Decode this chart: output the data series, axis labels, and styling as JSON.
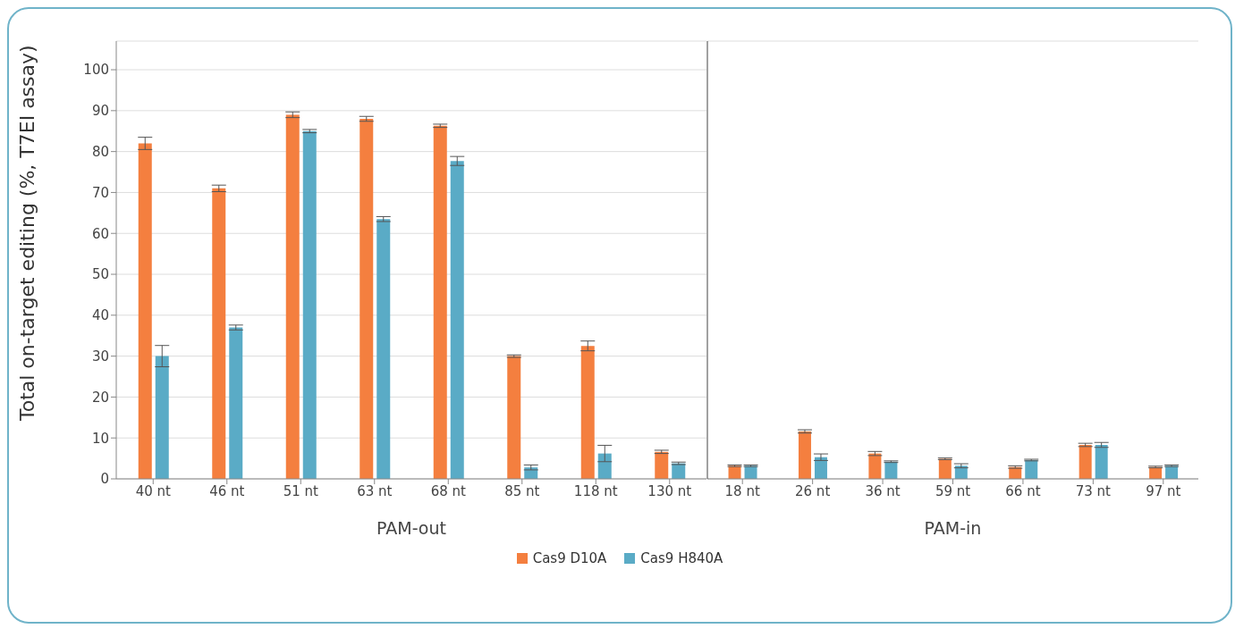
{
  "chart_data": [
    {
      "type": "bar",
      "ylabel": "Total on-target editing (%, T7EI assay)",
      "xlabel": "PAM-out",
      "categories": [
        "40 nt",
        "46 nt",
        "51 nt",
        "63 nt",
        "68 nt",
        "85 nt",
        "118 nt",
        "130 nt"
      ],
      "series": [
        {
          "name": "Cas9 D10A",
          "color": "#f47f3f",
          "values": [
            82,
            71,
            89,
            88,
            86.3,
            30,
            32.5,
            6.6
          ],
          "errors": [
            1.5,
            0.8,
            0.7,
            0.6,
            0.4,
            0.3,
            1.2,
            0.4
          ]
        },
        {
          "name": "Cas9 H840A",
          "color": "#5aabc6",
          "values": [
            30,
            37,
            85,
            63.5,
            77.7,
            2.8,
            6.2,
            3.8
          ],
          "errors": [
            2.6,
            0.6,
            0.4,
            0.6,
            1.1,
            0.6,
            2,
            0.3
          ]
        }
      ],
      "ylim": [
        0,
        107
      ],
      "yticks": [
        0,
        10,
        20,
        30,
        40,
        50,
        60,
        70,
        80,
        90,
        100
      ],
      "grid": "y",
      "legend": "bottom"
    },
    {
      "type": "bar",
      "xlabel": "PAM-in",
      "categories": [
        "18 nt",
        "26 nt",
        "36 nt",
        "59 nt",
        "66 nt",
        "73 nt",
        "97 nt"
      ],
      "series": [
        {
          "color": "#f47f3f",
          "values": [
            3.2,
            11.6,
            6.2,
            4.9,
            2.9,
            8.3,
            2.9
          ],
          "errors": [
            0.2,
            0.4,
            0.5,
            0.2,
            0.3,
            0.4,
            0.2
          ]
        },
        {
          "color": "#5aabc6",
          "values": [
            3.2,
            5.3,
            4.2,
            3.2,
            4.6,
            8.3,
            3.2
          ],
          "errors": [
            0.2,
            0.8,
            0.2,
            0.5,
            0.2,
            0.6,
            0.2
          ]
        }
      ],
      "ylim": [
        0,
        107
      ],
      "yticks": [
        0,
        10,
        20,
        30,
        40,
        50,
        60,
        70,
        80,
        90,
        100
      ],
      "grid": "y",
      "tick_labels": "x"
    }
  ]
}
